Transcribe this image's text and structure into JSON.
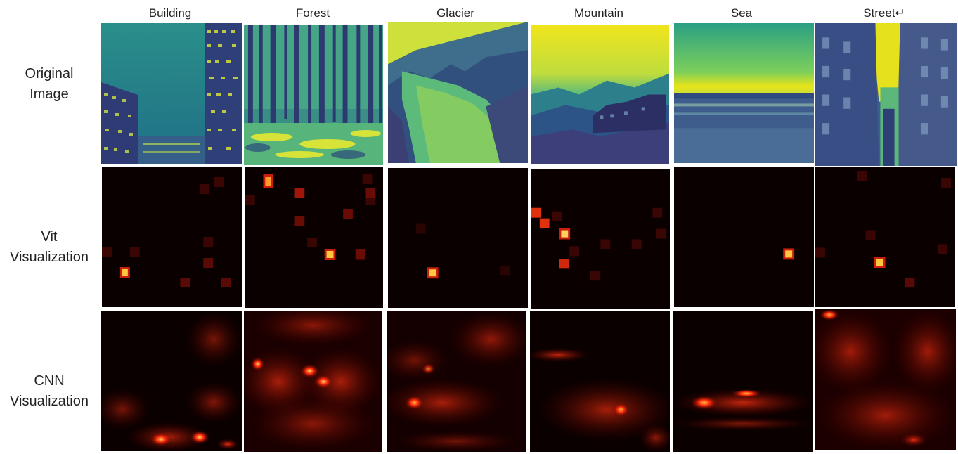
{
  "columns": [
    "Building",
    "Forest",
    "Glacier",
    "Mountain",
    "Sea",
    "Street↵"
  ],
  "rows": [
    {
      "line1": "Original",
      "line2": "Image"
    },
    {
      "line1": "Vit",
      "line2": "Visualization"
    },
    {
      "line1": "CNN",
      "line2": "Visualization"
    }
  ],
  "colors": {
    "viridis_dark": "#3b2a6b",
    "viridis_mid": "#2a8f8a",
    "viridis_light": "#e7e419",
    "heat_bg": "#0b0000",
    "heat_mid": "#c0150a",
    "heat_hot": "#ffe060"
  }
}
